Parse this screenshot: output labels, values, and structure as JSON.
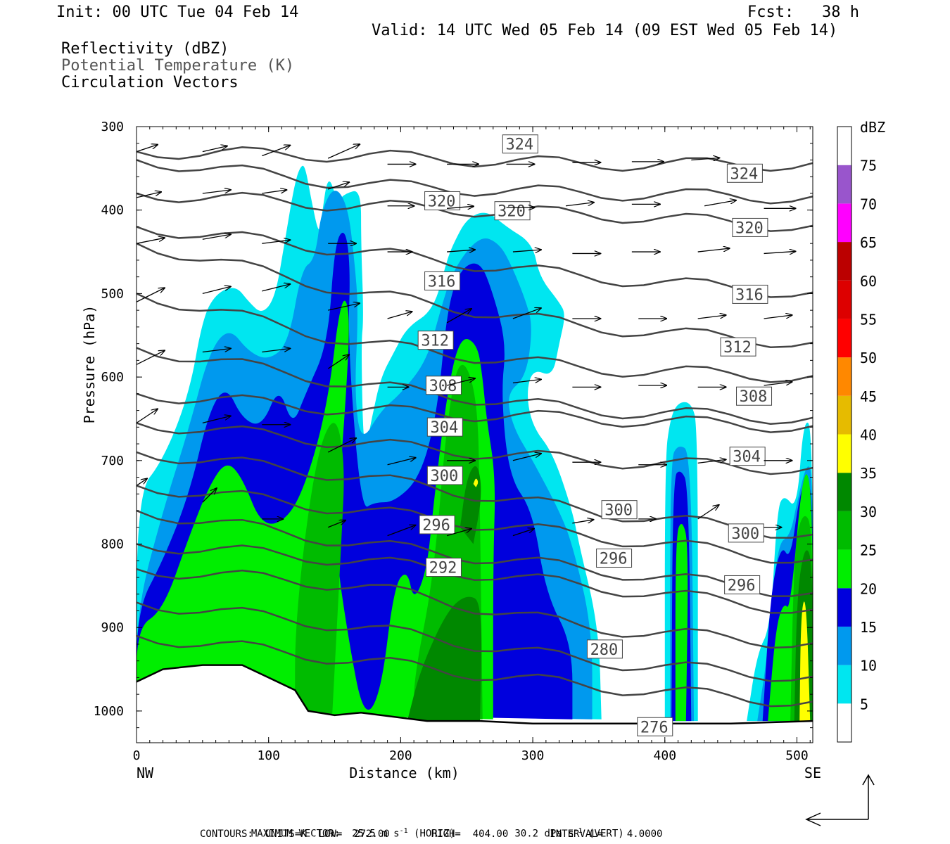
{
  "header": {
    "init": "Init: 00 UTC Tue 04 Feb 14",
    "fcst": "Fcst:   38 h",
    "valid": "Valid: 14 UTC Wed 05 Feb 14 (09 EST Wed 05 Feb 14)",
    "field1": "Reflectivity (dBZ)",
    "field2": "Potential Temperature (K)",
    "field3": "Circulation Vectors"
  },
  "footer": {
    "vector_label": "MAXIMUM VECTOR:  25.5 m s",
    "vector_exp": "-1",
    "vector_horiz": " (HORIZ)",
    "vector_vert": "30.2 dPa s",
    "vector_vert_exp": "-1",
    "vector_vert_tail": " (VERT)",
    "contours": "CONTOURS:  UNITS=K  LOW=  272.00       HIGH=  404.00       INTERVAL=    4.0000"
  },
  "chart_data": {
    "type": "cross-section",
    "xlabel": "Distance (km)",
    "ylabel": "Pressure (hPa)",
    "xlim": [
      0,
      512
    ],
    "ylim": [
      300,
      1038
    ],
    "x_ticks": [
      0,
      100,
      200,
      300,
      400,
      500
    ],
    "y_ticks": [
      300,
      400,
      500,
      600,
      700,
      800,
      900,
      1000
    ],
    "x_end_labels": {
      "left": "NW",
      "right": "SE"
    },
    "colorbar": {
      "title": "dBZ",
      "levels": [
        5,
        10,
        15,
        20,
        25,
        30,
        35,
        40,
        45,
        50,
        55,
        60,
        65,
        70,
        75
      ],
      "colors": [
        "#ffffff",
        "#00e6f0",
        "#0099ee",
        "#0000dd",
        "#00ee00",
        "#00bb00",
        "#008800",
        "#ffff00",
        "#e6bb00",
        "#ff8800",
        "#ff0000",
        "#dd0000",
        "#bb0000",
        "#ff00ff",
        "#9955cc",
        "#ffffff"
      ]
    },
    "theta_contours": {
      "units": "K",
      "low": 272,
      "high": 404,
      "interval": 4,
      "labeled": [
        {
          "value": "324",
          "x": 290,
          "p": 320
        },
        {
          "value": "324",
          "x": 460,
          "p": 355
        },
        {
          "value": "320",
          "x": 231,
          "p": 388
        },
        {
          "value": "320",
          "x": 284,
          "p": 400
        },
        {
          "value": "320",
          "x": 464,
          "p": 420
        },
        {
          "value": "316",
          "x": 231,
          "p": 484
        },
        {
          "value": "316",
          "x": 464,
          "p": 500
        },
        {
          "value": "312",
          "x": 226,
          "p": 555
        },
        {
          "value": "312",
          "x": 455,
          "p": 563
        },
        {
          "value": "308",
          "x": 232,
          "p": 609
        },
        {
          "value": "308",
          "x": 467,
          "p": 622
        },
        {
          "value": "304",
          "x": 233,
          "p": 659
        },
        {
          "value": "304",
          "x": 462,
          "p": 694
        },
        {
          "value": "300",
          "x": 233,
          "p": 717
        },
        {
          "value": "300",
          "x": 365,
          "p": 758
        },
        {
          "value": "300",
          "x": 461,
          "p": 786
        },
        {
          "value": "296",
          "x": 227,
          "p": 776
        },
        {
          "value": "296",
          "x": 361,
          "p": 816
        },
        {
          "value": "296",
          "x": 458,
          "p": 848
        },
        {
          "value": "292",
          "x": 232,
          "p": 827
        },
        {
          "value": "280",
          "x": 354,
          "p": 925
        },
        {
          "value": "276",
          "x": 392,
          "p": 1018
        }
      ]
    },
    "surface_pressure": [
      [
        0,
        965
      ],
      [
        20,
        950
      ],
      [
        50,
        945
      ],
      [
        80,
        945
      ],
      [
        100,
        960
      ],
      [
        120,
        975
      ],
      [
        130,
        1000
      ],
      [
        150,
        1005
      ],
      [
        170,
        1002
      ],
      [
        200,
        1008
      ],
      [
        220,
        1012
      ],
      [
        260,
        1012
      ],
      [
        300,
        1015
      ],
      [
        400,
        1015
      ],
      [
        450,
        1015
      ],
      [
        512,
        1012
      ]
    ]
  }
}
